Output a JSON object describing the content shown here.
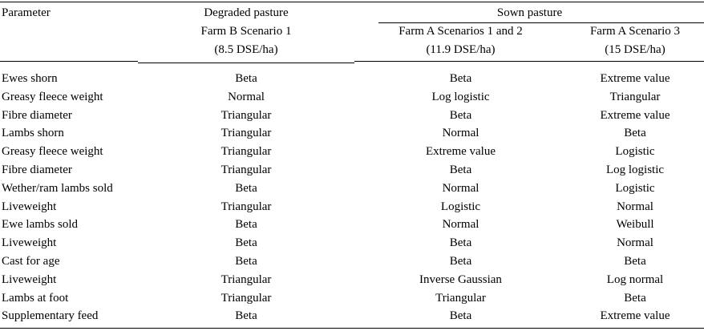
{
  "table": {
    "header": {
      "parameter": "Parameter",
      "degraded_title": "Degraded pasture",
      "degraded_line2": "Farm B Scenario 1",
      "degraded_line3": "(8.5 DSE/ha)",
      "sown_title": "Sown pasture",
      "sownA_line2": "Farm A Scenarios 1 and 2",
      "sownA_line3": "(11.9 DSE/ha)",
      "sownB_line2": "Farm A Scenario 3",
      "sownB_line3": "(15 DSE/ha)"
    },
    "rows": [
      {
        "param": "Ewes shorn",
        "c1": "Beta",
        "c2": "Beta",
        "c3": "Extreme value"
      },
      {
        "param": "Greasy fleece weight",
        "c1": "Normal",
        "c2": "Log logistic",
        "c3": "Triangular"
      },
      {
        "param": "Fibre diameter",
        "c1": "Triangular",
        "c2": "Beta",
        "c3": "Extreme value"
      },
      {
        "param": "Lambs shorn",
        "c1": "Triangular",
        "c2": "Normal",
        "c3": "Beta"
      },
      {
        "param": "Greasy fleece weight",
        "c1": "Triangular",
        "c2": "Extreme value",
        "c3": "Logistic"
      },
      {
        "param": "Fibre diameter",
        "c1": "Triangular",
        "c2": "Beta",
        "c3": "Log logistic"
      },
      {
        "param": "Wether/ram lambs sold",
        "c1": "Beta",
        "c2": "Normal",
        "c3": "Logistic"
      },
      {
        "param": "Liveweight",
        "c1": "Triangular",
        "c2": "Logistic",
        "c3": "Normal"
      },
      {
        "param": "Ewe lambs sold",
        "c1": "Beta",
        "c2": "Normal",
        "c3": "Weibull"
      },
      {
        "param": "Liveweight",
        "c1": "Beta",
        "c2": "Beta",
        "c3": "Normal"
      },
      {
        "param": "Cast for age",
        "c1": "Beta",
        "c2": "Beta",
        "c3": "Beta"
      },
      {
        "param": "Liveweight",
        "c1": "Triangular",
        "c2": "Inverse Gaussian",
        "c3": "Log normal"
      },
      {
        "param": "Lambs at foot",
        "c1": "Triangular",
        "c2": "Triangular",
        "c3": "Beta"
      },
      {
        "param": "Supplementary feed",
        "c1": "Beta",
        "c2": "Beta",
        "c3": "Extreme value"
      }
    ]
  }
}
